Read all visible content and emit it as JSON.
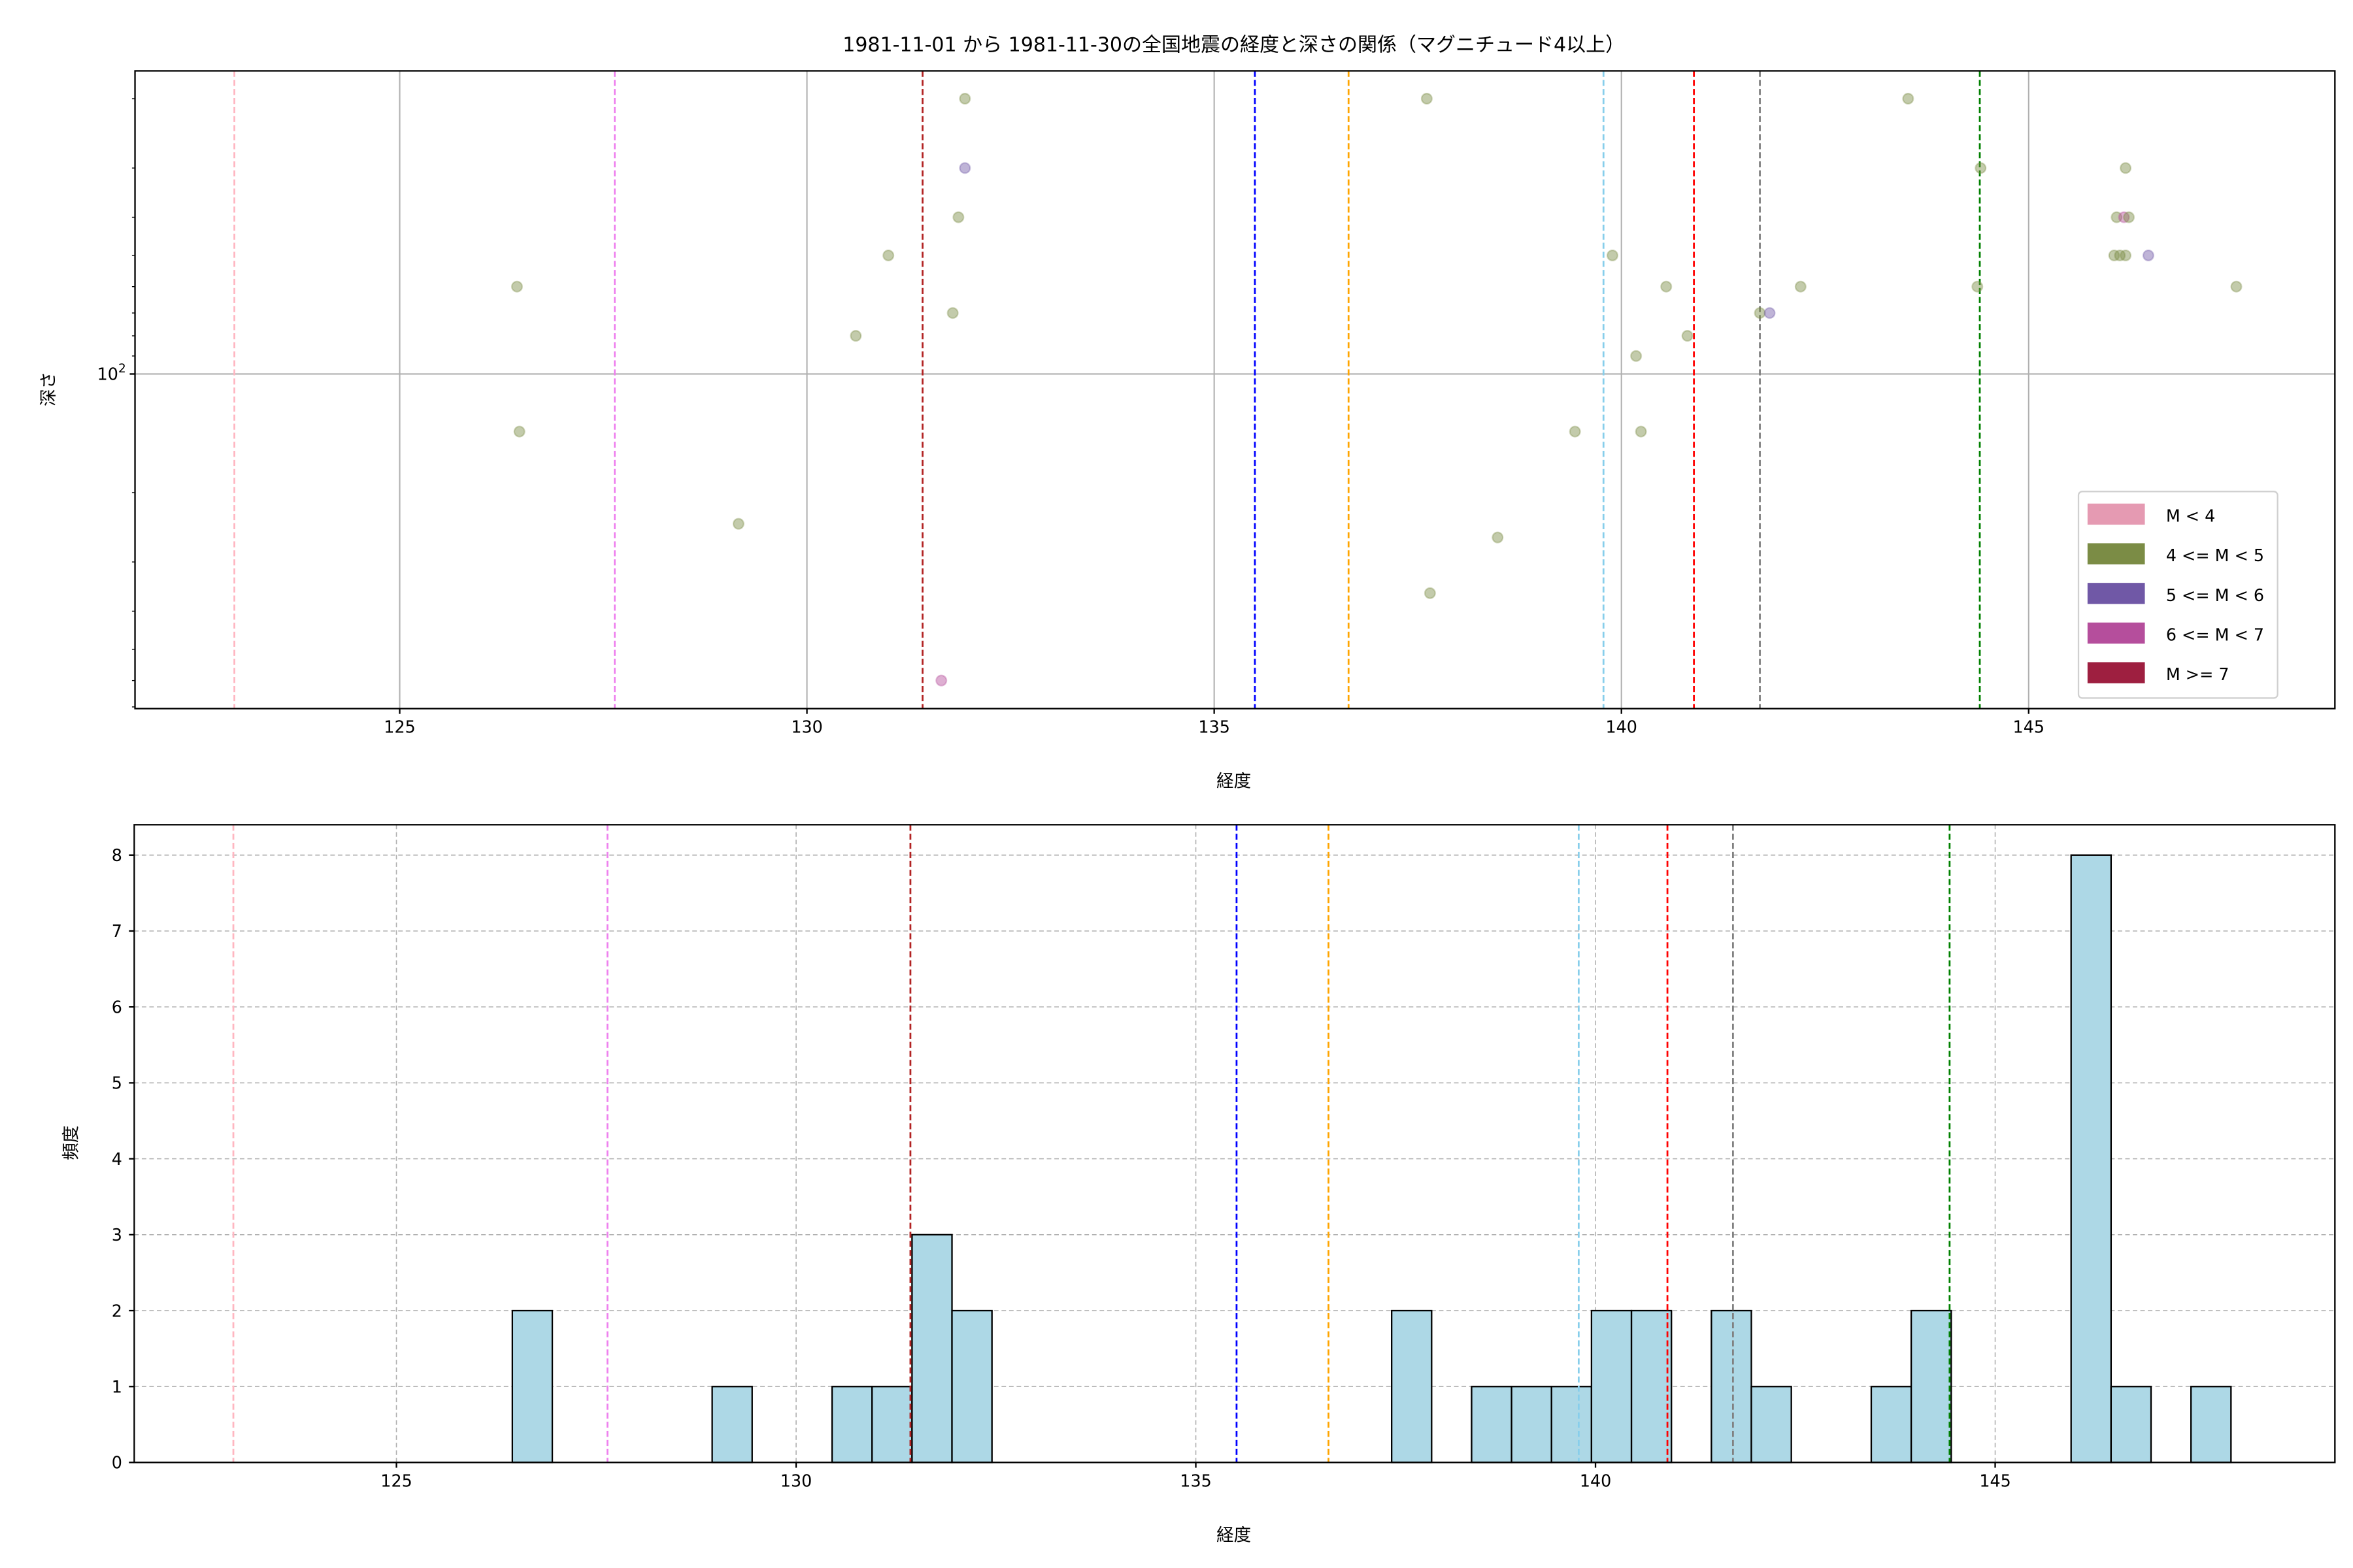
{
  "chart_data": [
    {
      "type": "scatter",
      "title": "1981-11-01 から 1981-11-30の全国地震の経度と深さの関係（マグニチュード4以上）",
      "xlabel": "経度",
      "ylabel": "深さ",
      "xlim": [
        121.75,
        148.76
      ],
      "ylim": [
        707,
        17
      ],
      "yscale": "log",
      "y_inverted": true,
      "xticks": [
        125,
        130,
        135,
        140,
        145
      ],
      "ytick_major": {
        "value": 100,
        "base": "10",
        "exp": "2"
      },
      "yticks_minor": [
        20,
        30,
        40,
        50,
        60,
        70,
        80,
        90,
        200,
        300,
        400,
        500,
        600,
        700
      ],
      "grid": true,
      "legend": {
        "position": "lower right",
        "entries": [
          {
            "label": "M < 4",
            "color": "#e59ab2"
          },
          {
            "label": "4 <= M < 5",
            "color": "#7b8c45"
          },
          {
            "label": "5 <= M < 6",
            "color": "#7058a6"
          },
          {
            "label": "6 <= M < 7",
            "color": "#b54e9c"
          },
          {
            "label": "M >= 7",
            "color": "#9e1f40"
          }
        ]
      },
      "vlines": [
        {
          "x": 122.97,
          "color": "#ffb6c1"
        },
        {
          "x": 127.64,
          "color": "#ee82ee"
        },
        {
          "x": 131.42,
          "color": "#b22222"
        },
        {
          "x": 135.5,
          "color": "#0000ff"
        },
        {
          "x": 136.65,
          "color": "#ffa500"
        },
        {
          "x": 139.78,
          "color": "#87ceeb"
        },
        {
          "x": 140.89,
          "color": "#ff0000"
        },
        {
          "x": 141.7,
          "color": "#808080"
        },
        {
          "x": 144.4,
          "color": "#008000"
        }
      ],
      "points": [
        {
          "x": 131.94,
          "y": 20,
          "class": 1
        },
        {
          "x": 131.94,
          "y": 30,
          "class": 2
        },
        {
          "x": 131.86,
          "y": 40,
          "class": 1
        },
        {
          "x": 131.0,
          "y": 50,
          "class": 1
        },
        {
          "x": 126.44,
          "y": 60,
          "class": 1
        },
        {
          "x": 131.79,
          "y": 70,
          "class": 1
        },
        {
          "x": 130.6,
          "y": 80,
          "class": 1
        },
        {
          "x": 126.47,
          "y": 140,
          "class": 1
        },
        {
          "x": 129.16,
          "y": 240,
          "class": 1
        },
        {
          "x": 131.65,
          "y": 600,
          "class": 3
        },
        {
          "x": 137.61,
          "y": 20,
          "class": 1
        },
        {
          "x": 143.52,
          "y": 20,
          "class": 1
        },
        {
          "x": 144.41,
          "y": 30,
          "class": 1
        },
        {
          "x": 146.19,
          "y": 30,
          "class": 1
        },
        {
          "x": 146.08,
          "y": 40,
          "class": 1
        },
        {
          "x": 146.17,
          "y": 40,
          "class": 3
        },
        {
          "x": 146.23,
          "y": 40,
          "class": 1
        },
        {
          "x": 146.05,
          "y": 50,
          "class": 1
        },
        {
          "x": 146.12,
          "y": 50,
          "class": 1
        },
        {
          "x": 146.19,
          "y": 50,
          "class": 1
        },
        {
          "x": 146.47,
          "y": 50,
          "class": 2
        },
        {
          "x": 139.89,
          "y": 50,
          "class": 1
        },
        {
          "x": 140.55,
          "y": 60,
          "class": 1
        },
        {
          "x": 142.2,
          "y": 60,
          "class": 1
        },
        {
          "x": 144.37,
          "y": 60,
          "class": 1
        },
        {
          "x": 147.55,
          "y": 60,
          "class": 1
        },
        {
          "x": 141.7,
          "y": 70,
          "class": 1
        },
        {
          "x": 141.82,
          "y": 70,
          "class": 2
        },
        {
          "x": 140.81,
          "y": 80,
          "class": 1
        },
        {
          "x": 140.18,
          "y": 90,
          "class": 1
        },
        {
          "x": 139.43,
          "y": 140,
          "class": 1
        },
        {
          "x": 140.24,
          "y": 140,
          "class": 1
        },
        {
          "x": 138.48,
          "y": 260,
          "class": 1
        },
        {
          "x": 137.65,
          "y": 360,
          "class": 1
        }
      ]
    },
    {
      "type": "bar",
      "subtype": "histogram",
      "xlabel": "経度",
      "ylabel": "頻度",
      "xlim": [
        121.72,
        149.25
      ],
      "ylim": [
        0,
        8.4
      ],
      "xticks": [
        125,
        130,
        135,
        140,
        145
      ],
      "yticks": [
        0,
        1,
        2,
        3,
        4,
        5,
        6,
        7,
        8
      ],
      "grid": "dashed",
      "bar_color": "#add8e6",
      "bin_start": 126.45,
      "bin_width": 0.5,
      "counts": [
        2,
        0,
        0,
        0,
        0,
        1,
        0,
        0,
        1,
        1,
        3,
        2,
        0,
        0,
        0,
        0,
        0,
        0,
        0,
        0,
        0,
        0,
        2,
        0,
        1,
        1,
        1,
        2,
        2,
        0,
        2,
        1,
        0,
        0,
        1,
        2,
        0,
        0,
        0,
        8,
        1,
        0,
        1
      ],
      "vlines": [
        {
          "x": 122.96,
          "color": "#ffb6c1"
        },
        {
          "x": 127.64,
          "color": "#ee82ee"
        },
        {
          "x": 131.43,
          "color": "#b22222"
        },
        {
          "x": 135.51,
          "color": "#0000ff"
        },
        {
          "x": 136.66,
          "color": "#ffa500"
        },
        {
          "x": 139.79,
          "color": "#87ceeb"
        },
        {
          "x": 140.9,
          "color": "#ff0000"
        },
        {
          "x": 141.72,
          "color": "#808080"
        },
        {
          "x": 144.43,
          "color": "#008000"
        }
      ]
    }
  ]
}
